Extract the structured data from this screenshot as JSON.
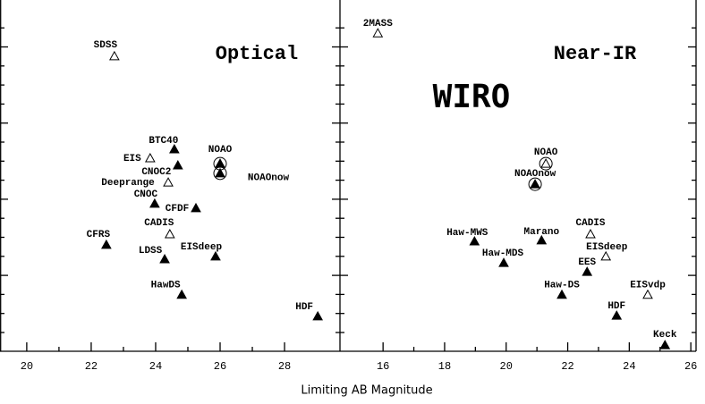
{
  "chart_data": [
    {
      "type": "scatter",
      "title": "Optical",
      "xlabel": "Limiting AB Magnitude",
      "xlim": [
        19.17,
        29.72
      ],
      "ylim": [
        0,
        10
      ],
      "xticks": [
        20,
        22,
        24,
        26,
        28
      ],
      "points": [
        {
          "label": "SDSS",
          "x": 22.72,
          "y": 8.62,
          "filled": false,
          "circled": false
        },
        {
          "label": "BTC40",
          "x": 24.58,
          "y": 5.9,
          "filled": true,
          "circled": false
        },
        {
          "label": "EIS",
          "x": 23.83,
          "y": 5.64,
          "filled": false,
          "circled": false
        },
        {
          "label": "CNOC2",
          "x": 24.69,
          "y": 5.43,
          "filled": true,
          "circled": false
        },
        {
          "label": "NOAO",
          "x": 26.0,
          "y": 5.48,
          "filled": true,
          "circled": true
        },
        {
          "label": "NOAOnow",
          "x": 26.0,
          "y": 5.2,
          "filled": true,
          "circled": true
        },
        {
          "label": "Deeprange",
          "x": 24.39,
          "y": 4.93,
          "filled": false,
          "circled": false
        },
        {
          "label": "CNOC",
          "x": 23.97,
          "y": 4.31,
          "filled": true,
          "circled": false
        },
        {
          "label": "CFDF",
          "x": 25.25,
          "y": 4.18,
          "filled": true,
          "circled": false
        },
        {
          "label": "CADIS",
          "x": 24.44,
          "y": 3.42,
          "filled": false,
          "circled": false
        },
        {
          "label": "CFRS",
          "x": 22.47,
          "y": 3.11,
          "filled": true,
          "circled": false
        },
        {
          "label": "LDSS",
          "x": 24.28,
          "y": 2.69,
          "filled": true,
          "circled": false
        },
        {
          "label": "EISdeep",
          "x": 25.86,
          "y": 2.77,
          "filled": true,
          "circled": false
        },
        {
          "label": "HawDS",
          "x": 24.81,
          "y": 1.65,
          "filled": true,
          "circled": false
        },
        {
          "label": "HDF",
          "x": 29.03,
          "y": 1.02,
          "filled": true,
          "circled": false
        }
      ]
    },
    {
      "type": "scatter",
      "title": "Near-IR",
      "annotation": "WIRO",
      "xlim": [
        14.6,
        26.17
      ],
      "ylim": [
        0,
        10
      ],
      "xticks": [
        16,
        18,
        20,
        22,
        24,
        26
      ],
      "points": [
        {
          "label": "2MASS",
          "x": 15.83,
          "y": 9.29,
          "filled": false,
          "circled": false
        },
        {
          "label": "NOAO",
          "x": 21.29,
          "y": 5.48,
          "filled": false,
          "circled": true
        },
        {
          "label": "NOAOnow",
          "x": 20.94,
          "y": 4.88,
          "filled": true,
          "circled": true
        },
        {
          "label": "Haw-MWS",
          "x": 18.97,
          "y": 3.21,
          "filled": true,
          "circled": false
        },
        {
          "label": "Marano",
          "x": 21.15,
          "y": 3.24,
          "filled": true,
          "circled": false
        },
        {
          "label": "CADIS",
          "x": 22.74,
          "y": 3.42,
          "filled": false,
          "circled": false
        },
        {
          "label": "Haw-MDS",
          "x": 19.92,
          "y": 2.58,
          "filled": true,
          "circled": false
        },
        {
          "label": "EISdeep",
          "x": 23.24,
          "y": 2.77,
          "filled": false,
          "circled": false
        },
        {
          "label": "EES",
          "x": 22.63,
          "y": 2.32,
          "filled": true,
          "circled": false
        },
        {
          "label": "Haw-DS",
          "x": 21.81,
          "y": 1.65,
          "filled": true,
          "circled": false
        },
        {
          "label": "EISvdp",
          "x": 24.6,
          "y": 1.65,
          "filled": false,
          "circled": false
        },
        {
          "label": "HDF",
          "x": 23.59,
          "y": 1.04,
          "filled": true,
          "circled": false
        },
        {
          "label": "Keck",
          "x": 25.16,
          "y": 0.18,
          "filled": true,
          "circled": false
        }
      ]
    }
  ]
}
